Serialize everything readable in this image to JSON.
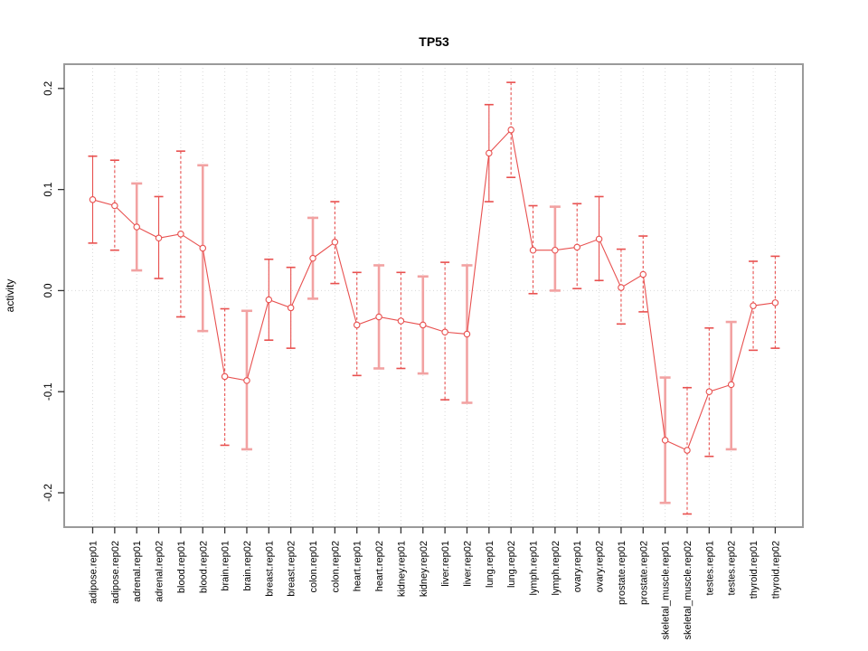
{
  "title": "TP53",
  "chart_data": {
    "type": "line",
    "title": "TP53",
    "xlabel": "",
    "ylabel": "activity",
    "ylim": [
      -0.234,
      0.224
    ],
    "ytick_values": [
      0.2,
      0.1,
      0.0,
      -0.1,
      -0.2
    ],
    "ytick_labels": [
      "0.2",
      "0.1",
      "0.0",
      "-0.1",
      "-0.2"
    ],
    "grid": "vertical dotted gridline at every category; horizontal dotted line at y=0",
    "legend_position": "none",
    "marker": "open-circle",
    "categories": [
      "adipose.rep01",
      "adipose.rep02",
      "adrenal.rep01",
      "adrenal.rep02",
      "blood.rep01",
      "blood.rep02",
      "brain.rep01",
      "brain.rep02",
      "breast.rep01",
      "breast.rep02",
      "colon.rep01",
      "colon.rep02",
      "heart.rep01",
      "heart.rep02",
      "kidney.rep01",
      "kidney.rep02",
      "liver.rep01",
      "liver.rep02",
      "lung.rep01",
      "lung.rep02",
      "lymph.rep01",
      "lymph.rep02",
      "ovary.rep01",
      "ovary.rep02",
      "prostate.rep01",
      "prostate.rep02",
      "skeletal_muscle.rep01",
      "skeletal_muscle.rep02",
      "testes.rep01",
      "testes.rep02",
      "thyroid.rep01",
      "thyroid.rep02"
    ],
    "series": [
      {
        "name": "activity",
        "values": [
          0.09,
          0.084,
          0.063,
          0.052,
          0.056,
          0.042,
          -0.085,
          -0.089,
          -0.009,
          -0.017,
          0.032,
          0.048,
          -0.034,
          -0.026,
          -0.03,
          -0.034,
          -0.041,
          -0.043,
          0.136,
          0.159,
          0.04,
          0.04,
          0.043,
          0.051,
          0.003,
          0.016,
          -0.148,
          -0.158,
          -0.1,
          -0.093,
          -0.015,
          -0.012
        ],
        "ci_low": [
          0.047,
          0.04,
          0.02,
          0.012,
          -0.026,
          -0.04,
          -0.153,
          -0.157,
          -0.049,
          -0.057,
          -0.008,
          0.007,
          -0.084,
          -0.077,
          -0.077,
          -0.082,
          -0.108,
          -0.111,
          0.088,
          0.112,
          -0.003,
          0.0,
          0.002,
          0.01,
          -0.033,
          -0.021,
          -0.21,
          -0.221,
          -0.164,
          -0.157,
          -0.059,
          -0.057
        ],
        "ci_high": [
          0.133,
          0.129,
          0.106,
          0.093,
          0.138,
          0.124,
          -0.018,
          -0.02,
          0.031,
          0.023,
          0.072,
          0.088,
          0.018,
          0.025,
          0.018,
          0.014,
          0.028,
          0.025,
          0.184,
          0.206,
          0.084,
          0.083,
          0.086,
          0.093,
          0.041,
          0.054,
          -0.086,
          -0.096,
          -0.037,
          -0.031,
          0.029,
          0.034
        ]
      }
    ],
    "error_bar_styles": [
      "solid",
      "dashed",
      "thick",
      "solid",
      "dashed",
      "thick",
      "dashed",
      "thick",
      "solid",
      "solid",
      "thick",
      "dashed",
      "dashed",
      "thick",
      "dashed",
      "thick",
      "dashed",
      "thick",
      "solid",
      "dashed",
      "dashed",
      "thick",
      "dashed",
      "solid",
      "dashed",
      "dashed",
      "thick",
      "dashed",
      "dashed",
      "thick",
      "dashed",
      "dashed"
    ],
    "colors": {
      "line": "#e8504f",
      "marker_stroke": "#e8504f",
      "marker_fill": "#ffffff",
      "error_bar_thin": "#e8504f",
      "error_bar_thick": "#f2a2a2",
      "grid": "#d9d9d9",
      "zero_line": "#d9d9d9",
      "box": "#9a9a9a",
      "tick": "#333333",
      "text": "#000000"
    }
  }
}
